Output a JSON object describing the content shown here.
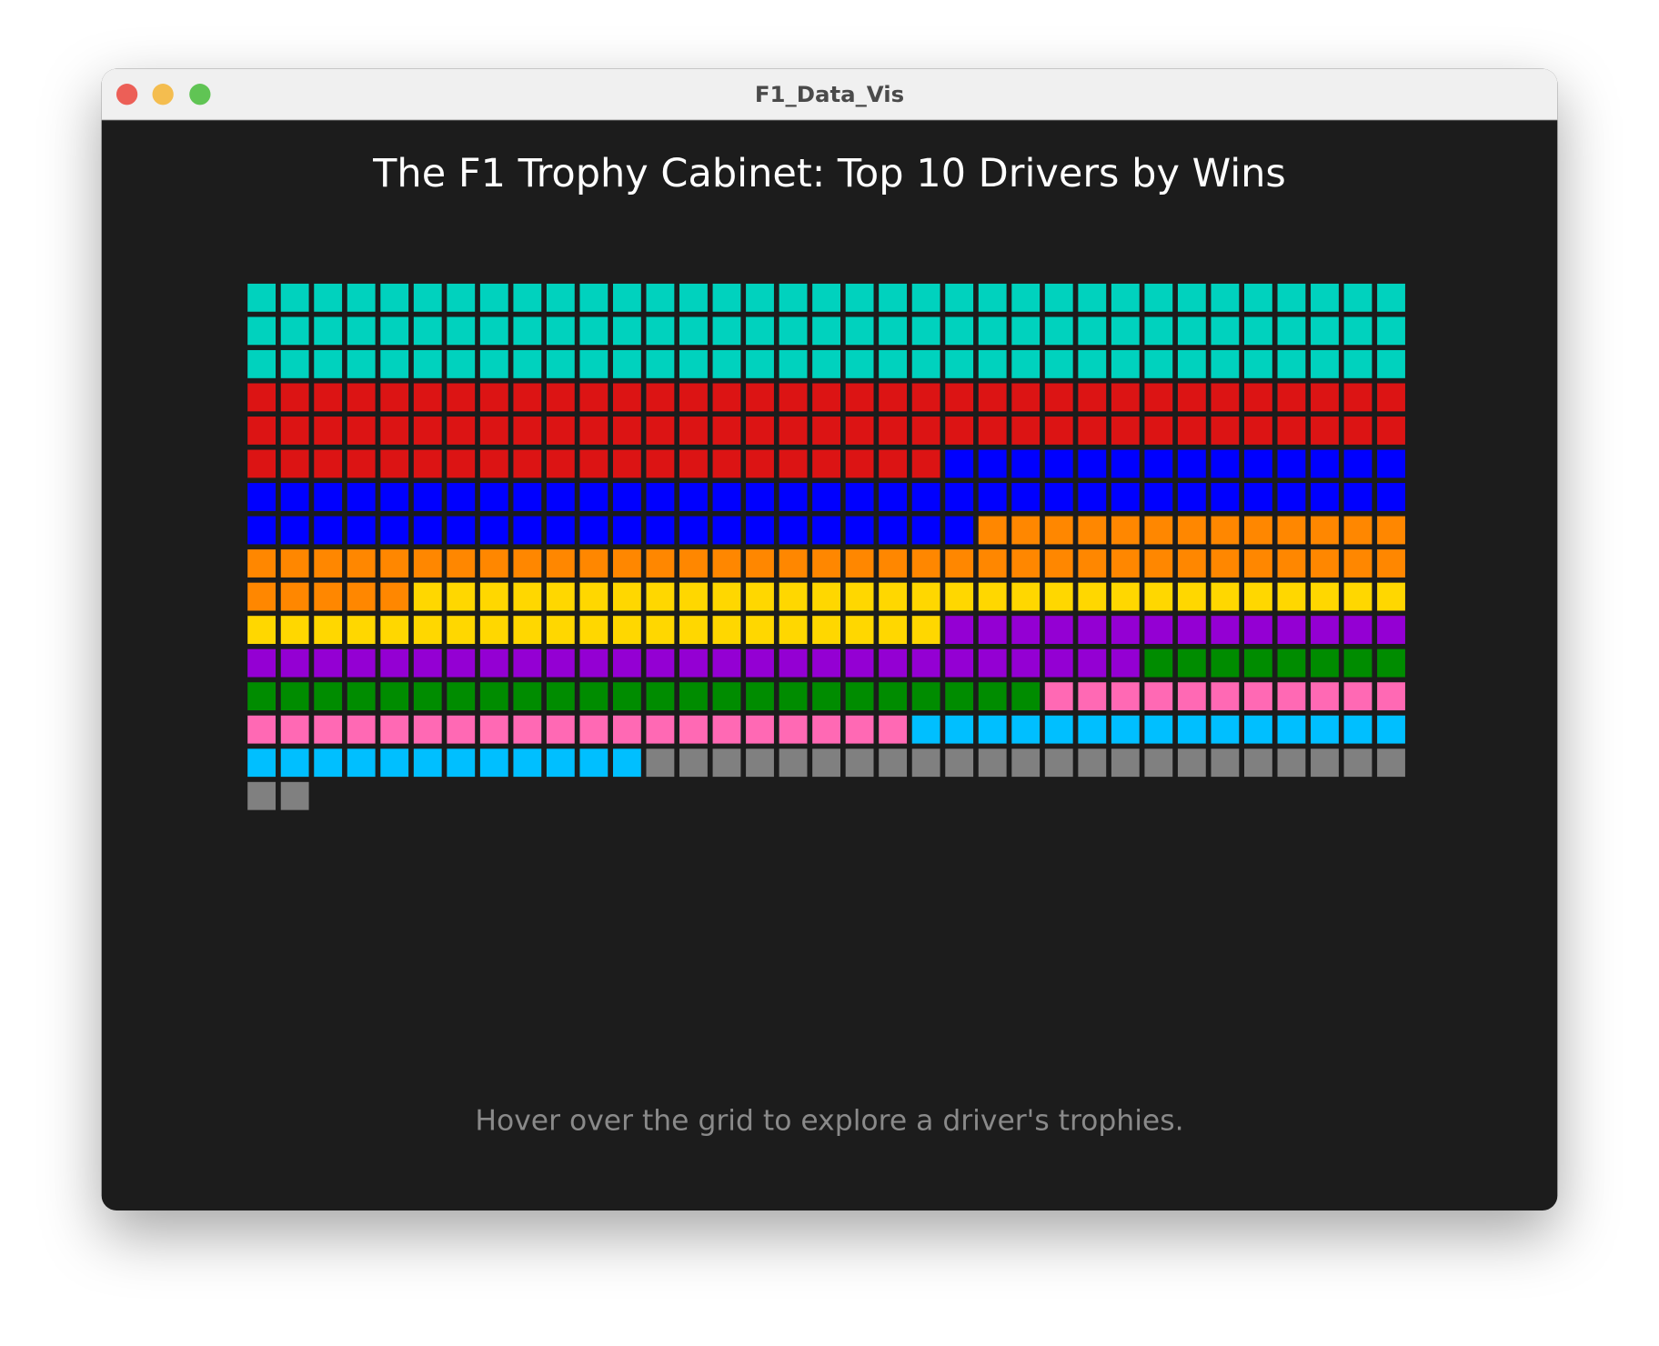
{
  "window_title": "F1_Data_Vis",
  "chart_data": {
    "type": "waffle",
    "title": "The F1 Trophy Cabinet: Top 10 Drivers by Wins",
    "values": [
      105,
      91,
      71,
      53,
      51,
      41,
      32,
      31,
      27,
      25
    ],
    "colors": [
      "#00d2be",
      "#dc1414",
      "#0000ff",
      "#ff8700",
      "#ffd700",
      "#9400d3",
      "#008c00",
      "#ff69b4",
      "#00bfff",
      "#808080"
    ],
    "hint": "Hover over the grid to explore a driver's trophies."
  }
}
